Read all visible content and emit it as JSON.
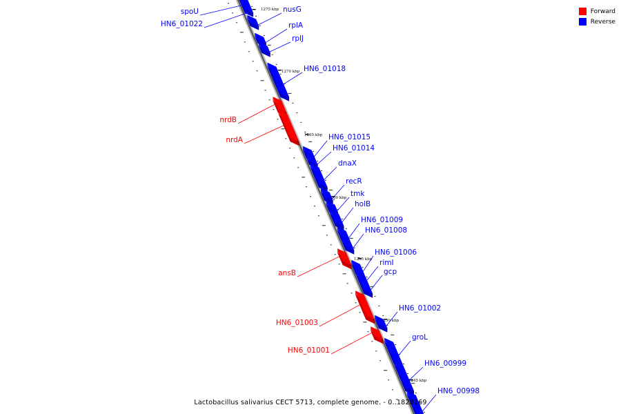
{
  "legend": {
    "forward_label": "Forward",
    "reverse_label": "Reverse",
    "forward_color": "#ff0000",
    "reverse_color": "#0000ff"
  },
  "caption": "Lactobacillus salivarius CECT 5713, complete genome. - 0..1828169",
  "ticks": [
    "1275 kbp",
    "1270 kbp",
    "1265 kbp",
    "1260 kbp",
    "1255 kbp",
    "1250 kbp",
    "1245 kbp"
  ],
  "genes": [
    {
      "name": "spoU",
      "strand": "reverse"
    },
    {
      "name": "HN6_01022",
      "strand": "reverse"
    },
    {
      "name": "nusG",
      "strand": "reverse"
    },
    {
      "name": "rplA",
      "strand": "reverse"
    },
    {
      "name": "rplJ",
      "strand": "reverse"
    },
    {
      "name": "HN6_01018",
      "strand": "reverse"
    },
    {
      "name": "nrdB",
      "strand": "forward"
    },
    {
      "name": "nrdA",
      "strand": "forward"
    },
    {
      "name": "HN6_01015",
      "strand": "reverse"
    },
    {
      "name": "HN6_01014",
      "strand": "reverse"
    },
    {
      "name": "dnaX",
      "strand": "reverse"
    },
    {
      "name": "recR",
      "strand": "reverse"
    },
    {
      "name": "tmk",
      "strand": "reverse"
    },
    {
      "name": "holB",
      "strand": "reverse"
    },
    {
      "name": "HN6_01009",
      "strand": "reverse"
    },
    {
      "name": "HN6_01008",
      "strand": "reverse"
    },
    {
      "name": "HN6_01006",
      "strand": "reverse"
    },
    {
      "name": "ansB",
      "strand": "forward"
    },
    {
      "name": "rimI",
      "strand": "reverse"
    },
    {
      "name": "gcp",
      "strand": "reverse"
    },
    {
      "name": "HN6_01003",
      "strand": "forward"
    },
    {
      "name": "HN6_01002",
      "strand": "reverse"
    },
    {
      "name": "groL",
      "strand": "reverse"
    },
    {
      "name": "HN6_01001",
      "strand": "forward"
    },
    {
      "name": "HN6_00999",
      "strand": "reverse"
    },
    {
      "name": "HN6_00998",
      "strand": "reverse"
    }
  ]
}
